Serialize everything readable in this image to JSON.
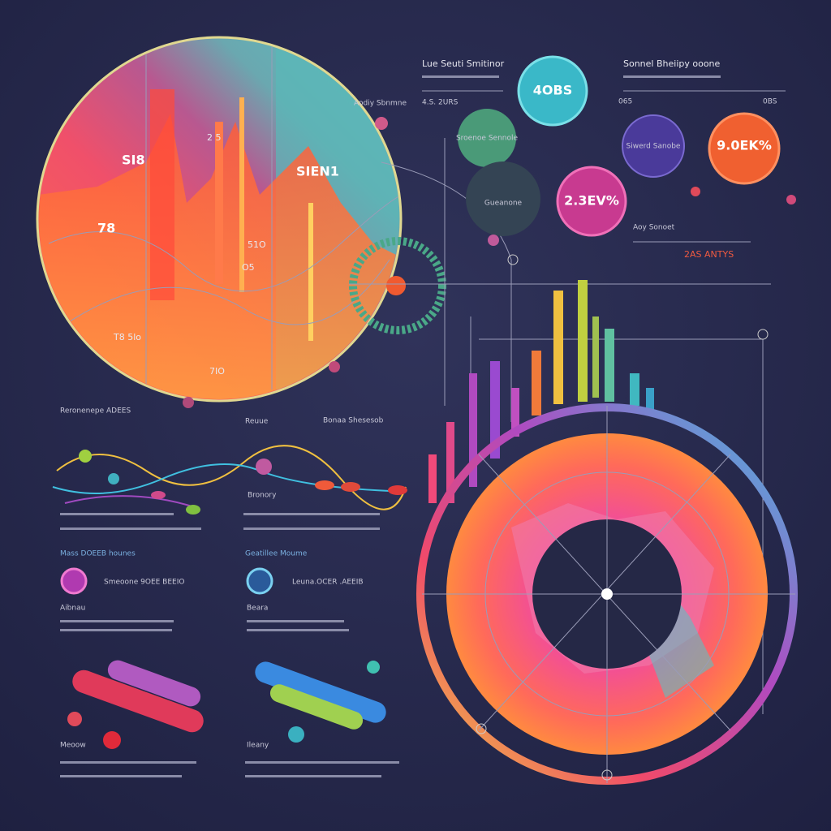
{
  "header": {
    "title": "Lue Seuti Smitinor",
    "subtitle": "4.S. 2URS",
    "right_title": "Sonnel Bheiipy ooone",
    "right_left": "065",
    "right_right": "0BS"
  },
  "bubbles": [
    "4OBS",
    "Sroenoe Sennole",
    "Gueanone",
    "2.3EV%",
    "Siwerd Sanobe",
    "9.0EK%"
  ],
  "circle": {
    "label": "Aodiy Sbnmne",
    "tags": [
      "SI8",
      "SIEN1",
      "78",
      "2 5",
      "51O",
      "O5",
      "T8 5lo",
      "7IO"
    ]
  },
  "mid": {
    "label": "Aoy Sonoet",
    "note": "2AS ANTYS"
  },
  "sections": {
    "a": "Reronenepe ADEES",
    "b": "Reuue",
    "c": "Bonaa Shesesob",
    "d": "Bronory",
    "e": "Mass DOEEB hounes",
    "f": "Geatillee Moume",
    "g": "Smeoone 9OEE BEEIO",
    "h": "Leuna.OCER .AEEIB",
    "i": "Aibnau",
    "j": "Beara",
    "k": "Meoow",
    "l": "Ileany"
  }
}
